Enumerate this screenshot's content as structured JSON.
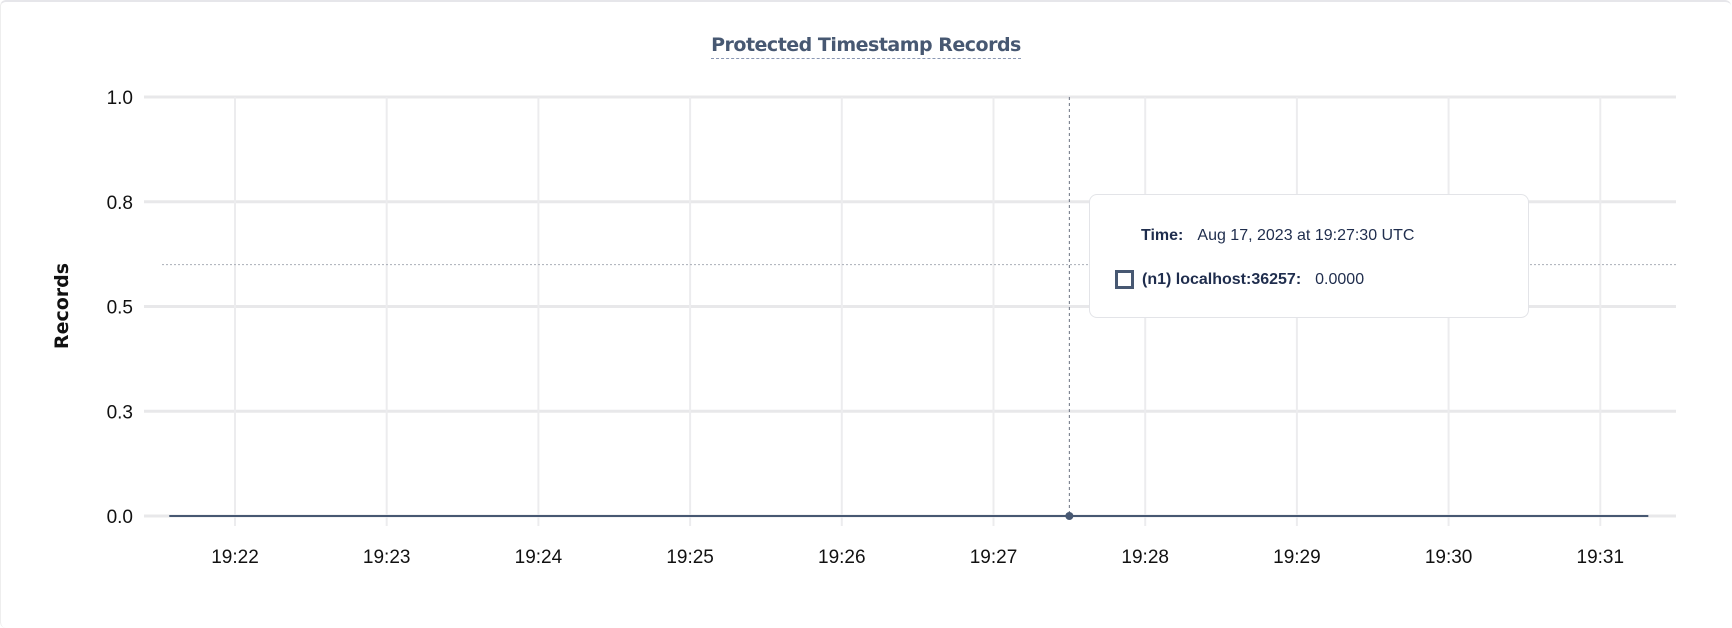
{
  "chart_data": {
    "type": "line",
    "title": "Protected Timestamp Records",
    "ylabel": "Records",
    "xlabel": "",
    "ylim": [
      0,
      1
    ],
    "y_ticks": [
      0,
      0.25,
      0.5,
      0.75,
      1.0
    ],
    "y_tick_labels": [
      "0.0",
      "0.3",
      "0.5",
      "0.8",
      "1.0"
    ],
    "x_tick_labels": [
      "19:22",
      "19:23",
      "19:24",
      "19:25",
      "19:26",
      "19:27",
      "19:28",
      "19:29",
      "19:30",
      "19:31"
    ],
    "xlim": [
      "19:21:34",
      "19:31:19"
    ],
    "grid": true,
    "series": [
      {
        "name": "(n1) localhost:36257",
        "color": "#475872",
        "x": [
          "19:21:34",
          "19:22:30",
          "19:24:00",
          "19:25:30",
          "19:27:00",
          "19:27:30",
          "19:28:30",
          "19:30:00",
          "19:31:19"
        ],
        "values": [
          0,
          0,
          0,
          0,
          0,
          0,
          0,
          0,
          0
        ]
      }
    ],
    "hover": {
      "time_label": "Time:",
      "time": "Aug 17, 2023 at 19:27:30 UTC",
      "x": "19:27:30",
      "series_label": "(n1) localhost:36257:",
      "value": "0.0000",
      "crosshair_y": 0.6
    }
  }
}
